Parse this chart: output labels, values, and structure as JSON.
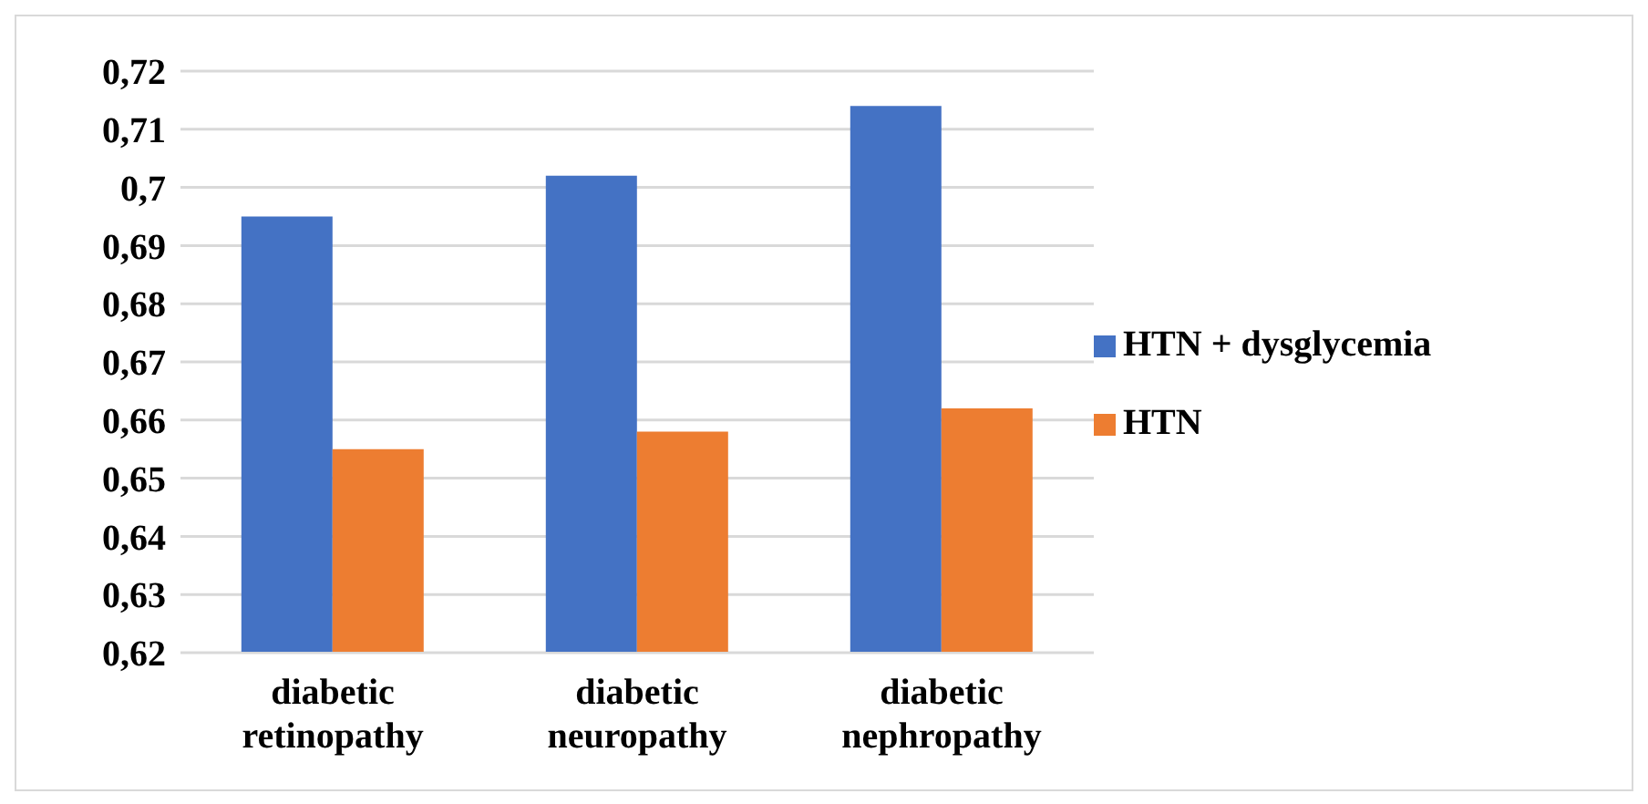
{
  "chart_data": {
    "type": "bar",
    "categories": [
      "diabetic retinopathy",
      "diabetic neuropathy",
      "diabetic nephropathy"
    ],
    "series": [
      {
        "name": "HTN + dysglycemia",
        "color": "#4472c4",
        "values": [
          0.695,
          0.702,
          0.714
        ]
      },
      {
        "name": "HTN",
        "color": "#ed7d31",
        "values": [
          0.655,
          0.658,
          0.662
        ]
      }
    ],
    "ylim": [
      0.62,
      0.72
    ],
    "yticks": [
      {
        "value": 0.62,
        "label": "0,62"
      },
      {
        "value": 0.63,
        "label": "0,63"
      },
      {
        "value": 0.64,
        "label": "0,64"
      },
      {
        "value": 0.65,
        "label": "0,65"
      },
      {
        "value": 0.66,
        "label": "0,66"
      },
      {
        "value": 0.67,
        "label": "0,67"
      },
      {
        "value": 0.68,
        "label": "0,68"
      },
      {
        "value": 0.69,
        "label": "0,69"
      },
      {
        "value": 0.7,
        "label": "0,7"
      },
      {
        "value": 0.71,
        "label": "0,71"
      },
      {
        "value": 0.72,
        "label": "0,72"
      }
    ],
    "grid": "y",
    "legend": "right"
  }
}
